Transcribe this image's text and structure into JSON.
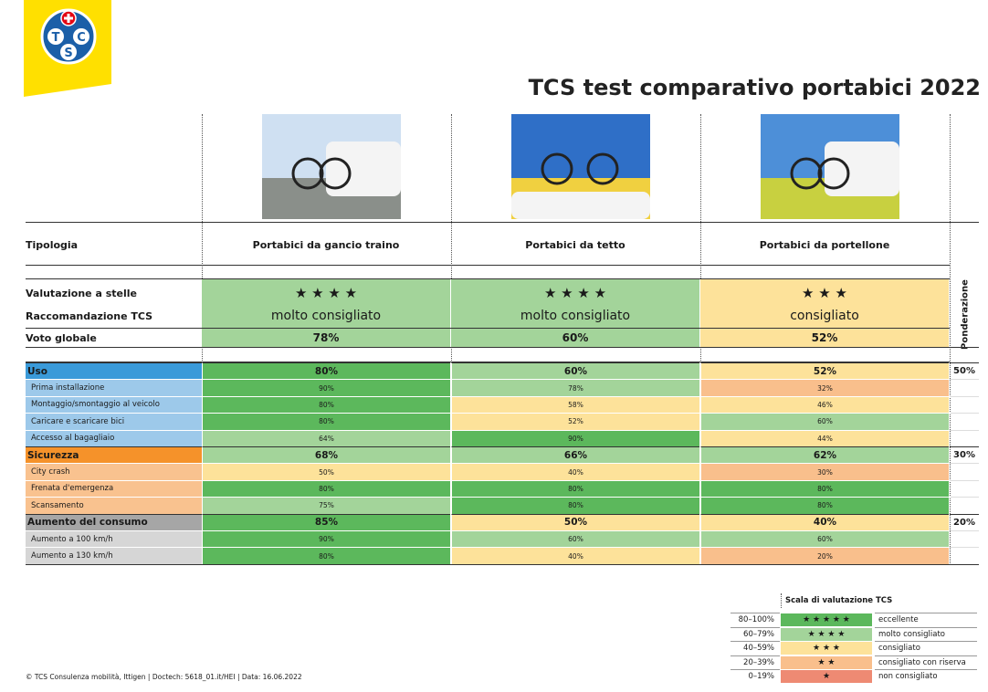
{
  "logo": {
    "letters": [
      "T",
      "C",
      "S"
    ]
  },
  "header": {
    "title": "TCS test comparativo portabici 2022"
  },
  "row_labels": {
    "type": "Tipologia",
    "stars": "Valutazione a stelle",
    "recommendation": "Raccomandazione TCS",
    "overall": "Voto globale"
  },
  "weighting_label": "Ponderazione",
  "products": [
    {
      "type": "Portabici da gancio traino",
      "stars": "★ ★ ★ ★",
      "recommendation": "molto consigliato",
      "overall": "78%"
    },
    {
      "type": "Portabici da tetto",
      "stars": "★ ★ ★ ★",
      "recommendation": "molto consigliato",
      "overall": "60%"
    },
    {
      "type": "Portabici da portellone",
      "stars": "★ ★ ★",
      "recommendation": "consigliato",
      "overall": "52%"
    }
  ],
  "sections": [
    {
      "name": "Uso",
      "weight": "50%",
      "values": [
        "80%",
        "60%",
        "52%"
      ],
      "rows": [
        {
          "name": "Prima installazione",
          "values": [
            "90%",
            "78%",
            "32%"
          ]
        },
        {
          "name": "Montaggio/smontaggio al veicolo",
          "values": [
            "80%",
            "58%",
            "46%"
          ]
        },
        {
          "name": "Caricare e scaricare bici",
          "values": [
            "80%",
            "52%",
            "60%"
          ]
        },
        {
          "name": "Accesso al bagagliaio",
          "values": [
            "64%",
            "90%",
            "44%"
          ]
        }
      ]
    },
    {
      "name": "Sicurezza",
      "weight": "30%",
      "values": [
        "68%",
        "66%",
        "62%"
      ],
      "rows": [
        {
          "name": "City crash",
          "values": [
            "50%",
            "40%",
            "30%"
          ]
        },
        {
          "name": "Frenata d'emergenza",
          "values": [
            "80%",
            "80%",
            "80%"
          ]
        },
        {
          "name": "Scansamento",
          "values": [
            "75%",
            "80%",
            "80%"
          ]
        }
      ]
    },
    {
      "name": "Aumento del consumo",
      "weight": "20%",
      "values": [
        "85%",
        "50%",
        "40%"
      ],
      "rows": [
        {
          "name": "Aumento a 100 km/h",
          "values": [
            "90%",
            "60%",
            "60%"
          ]
        },
        {
          "name": "Aumento a 130 km/h",
          "values": [
            "80%",
            "40%",
            "20%"
          ]
        }
      ]
    }
  ],
  "legend": {
    "title": "Scala di valutazione TCS",
    "rows": [
      {
        "range": "80–100%",
        "stars": "★ ★ ★ ★ ★",
        "label": "eccellente"
      },
      {
        "range": "60–79%",
        "stars": "★ ★ ★ ★",
        "label": "molto consigliato"
      },
      {
        "range": "40–59%",
        "stars": "★ ★ ★",
        "label": "consigliato"
      },
      {
        "range": "20–39%",
        "stars": "★ ★",
        "label": "consigliato con riserva"
      },
      {
        "range": "0–19%",
        "stars": "★",
        "label": "non consigliato"
      }
    ]
  },
  "footer": "© TCS Consulenza mobilità, Ittigen | Doctech: 5618_01.it/HEI | Data: 16.06.2022"
}
